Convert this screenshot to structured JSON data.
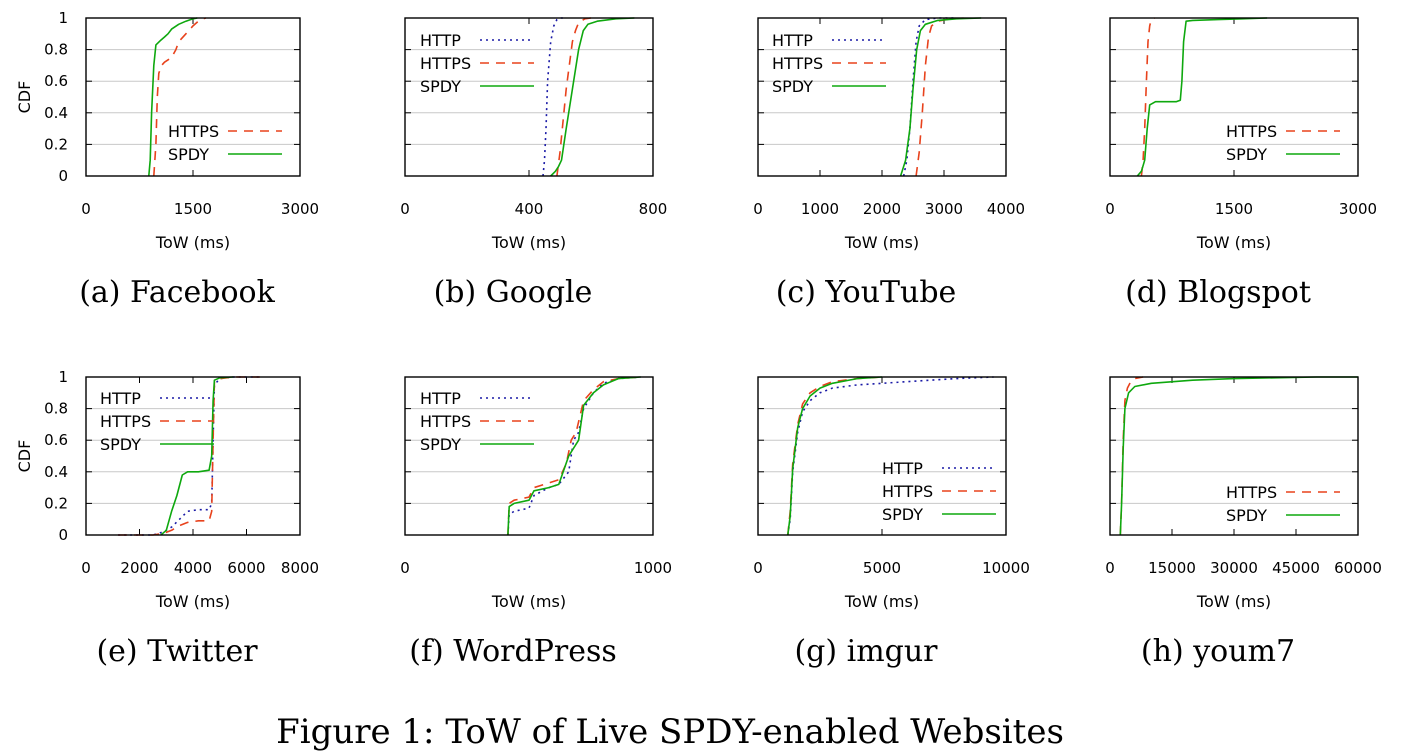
{
  "figure_caption": "Figure 1: ToW of Live SPDY-enabled Websites",
  "series_styles": {
    "HTTP": {
      "color": "#1a1aa6",
      "dash": "2,4"
    },
    "HTTPS": {
      "color": "#e8421c",
      "dash": "9,7"
    },
    "SPDY": {
      "color": "#0ea80e",
      "dash": ""
    }
  },
  "chart_data": [
    {
      "type": "line",
      "caption": "(a) Facebook",
      "xlabel": "ToW (ms)",
      "ylabel": "CDF",
      "xlim": [
        0,
        3000
      ],
      "ylim": [
        0,
        1
      ],
      "xticks": [
        "0",
        "1500",
        "3000"
      ],
      "xtick_values": [
        0,
        1500,
        3000
      ],
      "yticks": [
        "0",
        "0.2",
        "0.4",
        "0.6",
        "0.8",
        "1"
      ],
      "ytick_values": [
        0,
        0.2,
        0.4,
        0.6,
        0.8,
        1
      ],
      "grid": true,
      "legend_position": "bottom-right",
      "series": [
        {
          "name": "HTTPS",
          "x": [
            950,
            980,
            1000,
            1020,
            1060,
            1100,
            1200,
            1260,
            1300,
            1400,
            1500,
            1600,
            1680
          ],
          "y": [
            0,
            0.2,
            0.5,
            0.65,
            0.7,
            0.72,
            0.75,
            0.8,
            0.85,
            0.9,
            0.95,
            0.99,
            1
          ]
        },
        {
          "name": "SPDY",
          "x": [
            880,
            900,
            920,
            950,
            980,
            1050,
            1100,
            1150,
            1200,
            1300,
            1400,
            1500,
            1560
          ],
          "y": [
            0,
            0.1,
            0.4,
            0.7,
            0.83,
            0.86,
            0.88,
            0.9,
            0.93,
            0.96,
            0.98,
            0.995,
            1
          ]
        }
      ]
    },
    {
      "type": "line",
      "caption": "(b) Google",
      "xlabel": "ToW (ms)",
      "ylabel": "",
      "xlim": [
        0,
        800
      ],
      "ylim": [
        0,
        1
      ],
      "xticks": [
        "0",
        "400",
        "800"
      ],
      "xtick_values": [
        0,
        400,
        800
      ],
      "yticks": [],
      "ytick_values": [
        0,
        0.2,
        0.4,
        0.6,
        0.8,
        1
      ],
      "grid": true,
      "legend_position": "top-left",
      "series": [
        {
          "name": "HTTP",
          "x": [
            445,
            450,
            455,
            460,
            470,
            480,
            490,
            500,
            520
          ],
          "y": [
            0,
            0.1,
            0.3,
            0.6,
            0.85,
            0.95,
            0.99,
            1,
            1
          ]
        },
        {
          "name": "HTTPS",
          "x": [
            490,
            500,
            510,
            520,
            530,
            540,
            550,
            560,
            580,
            600
          ],
          "y": [
            0,
            0.15,
            0.35,
            0.55,
            0.7,
            0.85,
            0.92,
            0.97,
            0.995,
            1
          ]
        },
        {
          "name": "SPDY",
          "x": [
            470,
            485,
            495,
            505,
            520,
            540,
            560,
            575,
            590,
            620,
            680,
            740
          ],
          "y": [
            0,
            0.03,
            0.06,
            0.1,
            0.3,
            0.55,
            0.8,
            0.92,
            0.96,
            0.98,
            0.995,
            1
          ]
        }
      ]
    },
    {
      "type": "line",
      "caption": "(c) YouTube",
      "xlabel": "ToW (ms)",
      "ylabel": "",
      "xlim": [
        0,
        4000
      ],
      "ylim": [
        0,
        1
      ],
      "xticks": [
        "0",
        "1000",
        "2000",
        "3000",
        "4000"
      ],
      "xtick_values": [
        0,
        1000,
        2000,
        3000,
        4000
      ],
      "yticks": [],
      "ytick_values": [
        0,
        0.2,
        0.4,
        0.6,
        0.8,
        1
      ],
      "grid": true,
      "legend_position": "top-left",
      "series": [
        {
          "name": "HTTP",
          "x": [
            2350,
            2400,
            2450,
            2500,
            2550,
            2600,
            2700,
            2900,
            3200
          ],
          "y": [
            0,
            0.1,
            0.3,
            0.6,
            0.85,
            0.95,
            0.99,
            1,
            1
          ]
        },
        {
          "name": "HTTPS",
          "x": [
            2550,
            2600,
            2650,
            2700,
            2750,
            2800,
            2900,
            3100,
            3400
          ],
          "y": [
            0,
            0.15,
            0.4,
            0.7,
            0.88,
            0.95,
            0.98,
            0.995,
            1
          ]
        },
        {
          "name": "SPDY",
          "x": [
            2300,
            2380,
            2450,
            2500,
            2560,
            2620,
            2700,
            2900,
            3200,
            3600
          ],
          "y": [
            0,
            0.1,
            0.3,
            0.55,
            0.8,
            0.92,
            0.96,
            0.985,
            0.995,
            1
          ]
        }
      ]
    },
    {
      "type": "line",
      "caption": "(d) Blogspot",
      "xlabel": "ToW (ms)",
      "ylabel": "",
      "xlim": [
        0,
        3000
      ],
      "ylim": [
        0,
        1
      ],
      "xticks": [
        "0",
        "1500",
        "3000"
      ],
      "xtick_values": [
        0,
        1500,
        3000
      ],
      "yticks": [],
      "ytick_values": [
        0,
        0.2,
        0.4,
        0.6,
        0.8,
        1
      ],
      "grid": true,
      "legend_position": "bottom-right",
      "series": [
        {
          "name": "HTTPS",
          "x": [
            380,
            400,
            420,
            440,
            460,
            480,
            500,
            540
          ],
          "y": [
            0,
            0.1,
            0.3,
            0.6,
            0.85,
            0.95,
            0.99,
            1
          ]
        },
        {
          "name": "SPDY",
          "x": [
            330,
            380,
            420,
            450,
            480,
            550,
            800,
            850,
            870,
            890,
            920,
            1000,
            1300,
            1600,
            1900
          ],
          "y": [
            0,
            0.03,
            0.1,
            0.3,
            0.45,
            0.47,
            0.47,
            0.48,
            0.6,
            0.85,
            0.98,
            0.985,
            0.99,
            0.995,
            1
          ]
        }
      ]
    },
    {
      "type": "line",
      "caption": "(e) Twitter",
      "xlabel": "ToW (ms)",
      "ylabel": "CDF",
      "xlim": [
        0,
        8000
      ],
      "ylim": [
        0,
        1
      ],
      "xticks": [
        "0",
        "2000",
        "4000",
        "6000",
        "8000"
      ],
      "xtick_values": [
        0,
        2000,
        4000,
        6000,
        8000
      ],
      "yticks": [
        "0",
        "0.2",
        "0.4",
        "0.6",
        "0.8",
        "1"
      ],
      "ytick_values": [
        0,
        0.2,
        0.4,
        0.6,
        0.8,
        1
      ],
      "grid": true,
      "legend_position": "top-left",
      "series": [
        {
          "name": "HTTP",
          "x": [
            1200,
            2500,
            2900,
            3200,
            3500,
            3800,
            4200,
            4600,
            4700,
            4750,
            4800,
            5000,
            5500,
            6500
          ],
          "y": [
            0,
            0,
            0.02,
            0.05,
            0.1,
            0.15,
            0.16,
            0.16,
            0.2,
            0.6,
            0.95,
            0.99,
            1,
            1
          ]
        },
        {
          "name": "HTTPS",
          "x": [
            1200,
            2500,
            2900,
            3200,
            3500,
            3800,
            4200,
            4600,
            4700,
            4750,
            4800,
            5000,
            5500,
            6500
          ],
          "y": [
            0,
            0,
            0.01,
            0.03,
            0.06,
            0.08,
            0.09,
            0.09,
            0.15,
            0.6,
            0.97,
            0.99,
            1,
            1
          ]
        },
        {
          "name": "SPDY",
          "x": [
            2800,
            3000,
            3200,
            3400,
            3600,
            3800,
            4200,
            4600,
            4700,
            4750,
            4800,
            5000,
            5500
          ],
          "y": [
            0,
            0.03,
            0.15,
            0.25,
            0.38,
            0.4,
            0.4,
            0.41,
            0.5,
            0.85,
            0.98,
            0.995,
            1
          ]
        }
      ]
    },
    {
      "type": "line",
      "caption": "(f) WordPress",
      "xlabel": "ToW (ms)",
      "ylabel": "",
      "xlim": [
        0,
        1000
      ],
      "ylim": [
        0,
        1
      ],
      "xticks": [
        "0",
        "1000"
      ],
      "xtick_values": [
        0,
        1000
      ],
      "yticks": [],
      "ytick_values": [
        0,
        0.2,
        0.4,
        0.6,
        0.8,
        1
      ],
      "grid": true,
      "legend_position": "top-left",
      "series": [
        {
          "name": "HTTP",
          "x": [
            415,
            420,
            440,
            500,
            520,
            580,
            620,
            660,
            680,
            700,
            720,
            760,
            800,
            860,
            950
          ],
          "y": [
            0,
            0.13,
            0.15,
            0.17,
            0.25,
            0.3,
            0.32,
            0.4,
            0.6,
            0.65,
            0.8,
            0.9,
            0.96,
            0.99,
            1
          ]
        },
        {
          "name": "HTTPS",
          "x": [
            415,
            420,
            440,
            500,
            520,
            580,
            620,
            650,
            670,
            690,
            720,
            760,
            800,
            860,
            950
          ],
          "y": [
            0,
            0.2,
            0.22,
            0.24,
            0.3,
            0.33,
            0.35,
            0.45,
            0.6,
            0.65,
            0.85,
            0.92,
            0.97,
            0.99,
            1
          ]
        },
        {
          "name": "SPDY",
          "x": [
            415,
            420,
            440,
            500,
            520,
            580,
            620,
            660,
            700,
            720,
            760,
            800,
            860,
            950
          ],
          "y": [
            0,
            0.18,
            0.2,
            0.22,
            0.28,
            0.3,
            0.32,
            0.5,
            0.6,
            0.82,
            0.9,
            0.95,
            0.99,
            1
          ]
        }
      ]
    },
    {
      "type": "line",
      "caption": "(g) imgur",
      "xlabel": "ToW (ms)",
      "ylabel": "",
      "xlim": [
        0,
        10000
      ],
      "ylim": [
        0,
        1
      ],
      "xticks": [
        "0",
        "5000",
        "10000"
      ],
      "xtick_values": [
        0,
        5000,
        10000
      ],
      "yticks": [],
      "ytick_values": [
        0,
        0.2,
        0.4,
        0.6,
        0.8,
        1
      ],
      "grid": true,
      "legend_position": "bottom-right",
      "series": [
        {
          "name": "HTTP",
          "x": [
            1200,
            1300,
            1400,
            1600,
            1800,
            2100,
            2500,
            3000,
            4000,
            6000,
            8000,
            9500
          ],
          "y": [
            0,
            0.1,
            0.4,
            0.65,
            0.78,
            0.85,
            0.9,
            0.93,
            0.95,
            0.97,
            0.99,
            1
          ]
        },
        {
          "name": "HTTPS",
          "x": [
            1200,
            1300,
            1400,
            1600,
            1800,
            2100,
            2500,
            3000,
            4000,
            5000
          ],
          "y": [
            0,
            0.15,
            0.45,
            0.7,
            0.83,
            0.9,
            0.94,
            0.97,
            0.99,
            1
          ]
        },
        {
          "name": "SPDY",
          "x": [
            1200,
            1300,
            1400,
            1600,
            1800,
            2100,
            2500,
            3000,
            4000,
            5000
          ],
          "y": [
            0,
            0.12,
            0.42,
            0.68,
            0.8,
            0.88,
            0.93,
            0.96,
            0.99,
            1
          ]
        }
      ]
    },
    {
      "type": "line",
      "caption": "(h) youm7",
      "xlabel": "ToW (ms)",
      "ylabel": "",
      "xlim": [
        0,
        60000
      ],
      "ylim": [
        0,
        1
      ],
      "xticks": [
        "0",
        "15000",
        "30000",
        "45000",
        "60000"
      ],
      "xtick_values": [
        0,
        15000,
        30000,
        45000,
        60000
      ],
      "yticks": [],
      "ytick_values": [
        0,
        0.2,
        0.4,
        0.6,
        0.8,
        1
      ],
      "grid": true,
      "legend_position": "bottom-right",
      "series": [
        {
          "name": "HTTPS",
          "x": [
            2500,
            2800,
            3200,
            3600,
            4200,
            5000,
            6000,
            8000
          ],
          "y": [
            0,
            0.2,
            0.6,
            0.85,
            0.93,
            0.97,
            0.99,
            1
          ]
        },
        {
          "name": "SPDY",
          "x": [
            2500,
            2800,
            3200,
            3600,
            4500,
            6000,
            10000,
            20000,
            30000,
            40000,
            50000,
            60000
          ],
          "y": [
            0,
            0.2,
            0.55,
            0.8,
            0.9,
            0.94,
            0.96,
            0.98,
            0.99,
            0.995,
            1,
            1
          ]
        }
      ]
    }
  ]
}
